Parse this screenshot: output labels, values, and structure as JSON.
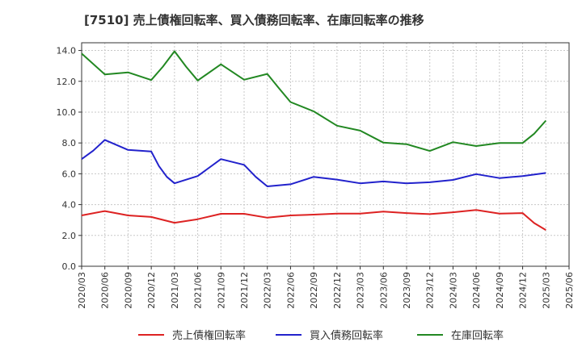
{
  "chart_data": {
    "type": "line",
    "title": "[7510]  売上債権回転率、買入債務回転率、在庫回転率の推移",
    "xlabel": "",
    "ylabel": "",
    "ylim": [
      0,
      14.5
    ],
    "yticks": [
      "0.0",
      "2.0",
      "4.0",
      "6.0",
      "8.0",
      "10.0",
      "12.0",
      "14.0"
    ],
    "ytick_values": [
      0,
      2,
      4,
      6,
      8,
      10,
      12,
      14
    ],
    "categories": [
      "2020/03",
      "2020/06",
      "2020/09",
      "2020/12",
      "2021/03",
      "2021/06",
      "2021/09",
      "2021/12",
      "2022/03",
      "2022/06",
      "2022/09",
      "2022/12",
      "2023/03",
      "2023/06",
      "2023/09",
      "2023/12",
      "2024/03",
      "2024/06",
      "2024/09",
      "2024/12",
      "2025/03",
      "2025/06"
    ],
    "grid": true,
    "legend": "bottom",
    "series": [
      {
        "name": "売上債権回転率",
        "color": "#dd2222",
        "points": [
          [
            0,
            3.3
          ],
          [
            1,
            3.58
          ],
          [
            2,
            3.3
          ],
          [
            3,
            3.2
          ],
          [
            4,
            2.82
          ],
          [
            5,
            3.05
          ],
          [
            6,
            3.4
          ],
          [
            7,
            3.4
          ],
          [
            8,
            3.15
          ],
          [
            9,
            3.3
          ],
          [
            10,
            3.35
          ],
          [
            11,
            3.42
          ],
          [
            12,
            3.42
          ],
          [
            13,
            3.55
          ],
          [
            14,
            3.45
          ],
          [
            15,
            3.38
          ],
          [
            16,
            3.5
          ],
          [
            17,
            3.65
          ],
          [
            18,
            3.42
          ],
          [
            19,
            3.45
          ],
          [
            19.5,
            2.8
          ],
          [
            20,
            2.35
          ]
        ]
      },
      {
        "name": "買入債務回転率",
        "color": "#2222cc",
        "points": [
          [
            0,
            6.95
          ],
          [
            0.5,
            7.5
          ],
          [
            1,
            8.2
          ],
          [
            2,
            7.55
          ],
          [
            3,
            7.45
          ],
          [
            3.33,
            6.5
          ],
          [
            3.67,
            5.8
          ],
          [
            4,
            5.38
          ],
          [
            5,
            5.85
          ],
          [
            6,
            6.95
          ],
          [
            7,
            6.58
          ],
          [
            7.5,
            5.8
          ],
          [
            8,
            5.18
          ],
          [
            9,
            5.32
          ],
          [
            10,
            5.8
          ],
          [
            11,
            5.62
          ],
          [
            12,
            5.38
          ],
          [
            13,
            5.5
          ],
          [
            14,
            5.38
          ],
          [
            15,
            5.45
          ],
          [
            16,
            5.6
          ],
          [
            17,
            5.98
          ],
          [
            18,
            5.72
          ],
          [
            19,
            5.85
          ],
          [
            20,
            6.05
          ]
        ]
      },
      {
        "name": "在庫回転率",
        "color": "#228822",
        "points": [
          [
            0,
            13.8
          ],
          [
            1,
            12.45
          ],
          [
            2,
            12.58
          ],
          [
            3,
            12.08
          ],
          [
            3.5,
            12.95
          ],
          [
            4,
            13.95
          ],
          [
            4.5,
            12.95
          ],
          [
            5,
            12.05
          ],
          [
            6,
            13.1
          ],
          [
            7,
            12.1
          ],
          [
            8,
            12.48
          ],
          [
            8.5,
            11.55
          ],
          [
            9,
            10.65
          ],
          [
            10,
            10.05
          ],
          [
            11,
            9.12
          ],
          [
            12,
            8.8
          ],
          [
            13,
            8.02
          ],
          [
            14,
            7.92
          ],
          [
            15,
            7.48
          ],
          [
            16,
            8.05
          ],
          [
            17,
            7.8
          ],
          [
            18,
            8.0
          ],
          [
            19,
            8.0
          ],
          [
            19.5,
            8.6
          ],
          [
            20,
            9.45
          ]
        ]
      }
    ]
  }
}
